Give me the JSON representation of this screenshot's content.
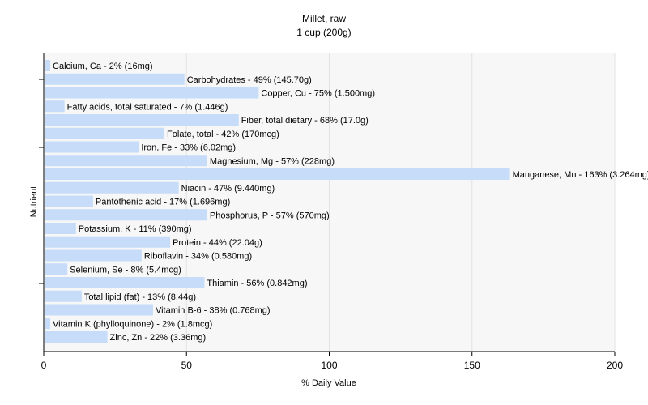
{
  "chart_data": {
    "type": "bar",
    "orientation": "horizontal",
    "title": "Millet, raw",
    "subtitle": "1 cup (200g)",
    "xlabel": "% Daily Value",
    "ylabel": "Nutrient",
    "xlim": [
      0,
      200
    ],
    "xticks": [
      0,
      50,
      100,
      150,
      200
    ],
    "grid": true,
    "bar_color": "#c6dcf8",
    "grid_color": "#e3e3e3",
    "categories": [
      "Calcium, Ca",
      "Carbohydrates",
      "Copper, Cu",
      "Fatty acids, total saturated",
      "Fiber, total dietary",
      "Folate, total",
      "Iron, Fe",
      "Magnesium, Mg",
      "Manganese, Mn",
      "Niacin",
      "Pantothenic acid",
      "Phosphorus, P",
      "Potassium, K",
      "Protein",
      "Riboflavin",
      "Selenium, Se",
      "Thiamin",
      "Total lipid (fat)",
      "Vitamin B-6",
      "Vitamin K (phylloquinone)",
      "Zinc, Zn"
    ],
    "values": [
      2,
      49,
      75,
      7,
      68,
      42,
      33,
      57,
      163,
      47,
      17,
      57,
      11,
      44,
      34,
      8,
      56,
      13,
      38,
      2,
      22
    ],
    "labels": [
      "Calcium, Ca - 2% (16mg)",
      "Carbohydrates - 49% (145.70g)",
      "Copper, Cu - 75% (1.500mg)",
      "Fatty acids, total saturated - 7% (1.446g)",
      "Fiber, total dietary - 68% (17.0g)",
      "Folate, total - 42% (170mcg)",
      "Iron, Fe - 33% (6.02mg)",
      "Magnesium, Mg - 57% (228mg)",
      "Manganese, Mn - 163% (3.264mg)",
      "Niacin - 47% (9.440mg)",
      "Pantothenic acid - 17% (1.696mg)",
      "Phosphorus, P - 57% (570mg)",
      "Potassium, K - 11% (390mg)",
      "Protein - 44% (22.04g)",
      "Riboflavin - 34% (0.580mg)",
      "Selenium, Se - 8% (5.4mcg)",
      "Thiamin - 56% (0.842mg)",
      "Total lipid (fat) - 13% (8.44g)",
      "Vitamin B-6 - 38% (0.768mg)",
      "Vitamin K (phylloquinone) - 2% (1.8mcg)",
      "Zinc, Zn - 22% (3.36mg)"
    ]
  }
}
